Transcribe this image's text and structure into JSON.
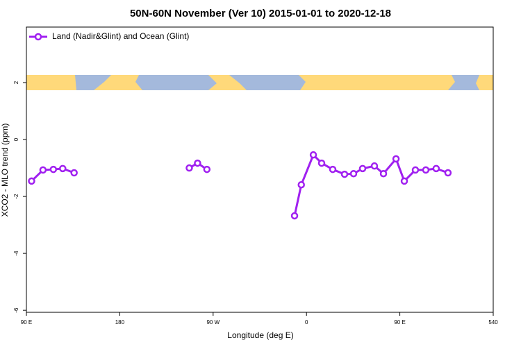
{
  "chart_data": {
    "type": "line",
    "title": "50N-60N November (Ver 10)   2015-01-01 to 2020-12-18",
    "x_label": "Longitude (deg E)",
    "y_label": "XCO2 - MLO trend (ppm)",
    "xlim": [
      90,
      540
    ],
    "xticks": [
      {
        "value": 90,
        "label": "90 E"
      },
      180,
      {
        "value": 270,
        "label": "90 W"
      },
      {
        "value": 360,
        "label": "0"
      },
      {
        "value": 450,
        "label": "90 E"
      },
      540
    ],
    "ylim": [
      -6.07,
      3.95
    ],
    "yticks": [
      -6,
      -4,
      -2,
      0,
      2
    ],
    "legend": "top-left",
    "series": [
      {
        "name": "Land (Nadir&Glint) and Ocean (Glint)",
        "color": "#a020f0",
        "x": [
          95,
          106,
          116,
          125,
          136,
          null,
          247,
          255,
          264,
          null,
          348.5,
          355,
          366.6,
          374.6,
          385.3,
          396.7,
          405.4,
          414.1,
          425.5,
          434.2,
          446.3,
          454.3,
          465,
          475,
          485,
          496.4
        ],
        "values": [
          -1.46,
          -1.07,
          -1.05,
          -1.02,
          -1.17,
          null,
          -1.0,
          -0.83,
          -1.05,
          null,
          -2.68,
          -1.59,
          -0.54,
          -0.83,
          -1.05,
          -1.22,
          -1.2,
          -1.02,
          -0.93,
          -1.2,
          -0.68,
          -1.46,
          -1.07,
          -1.07,
          -1.02,
          -1.17
        ]
      }
    ]
  }
}
